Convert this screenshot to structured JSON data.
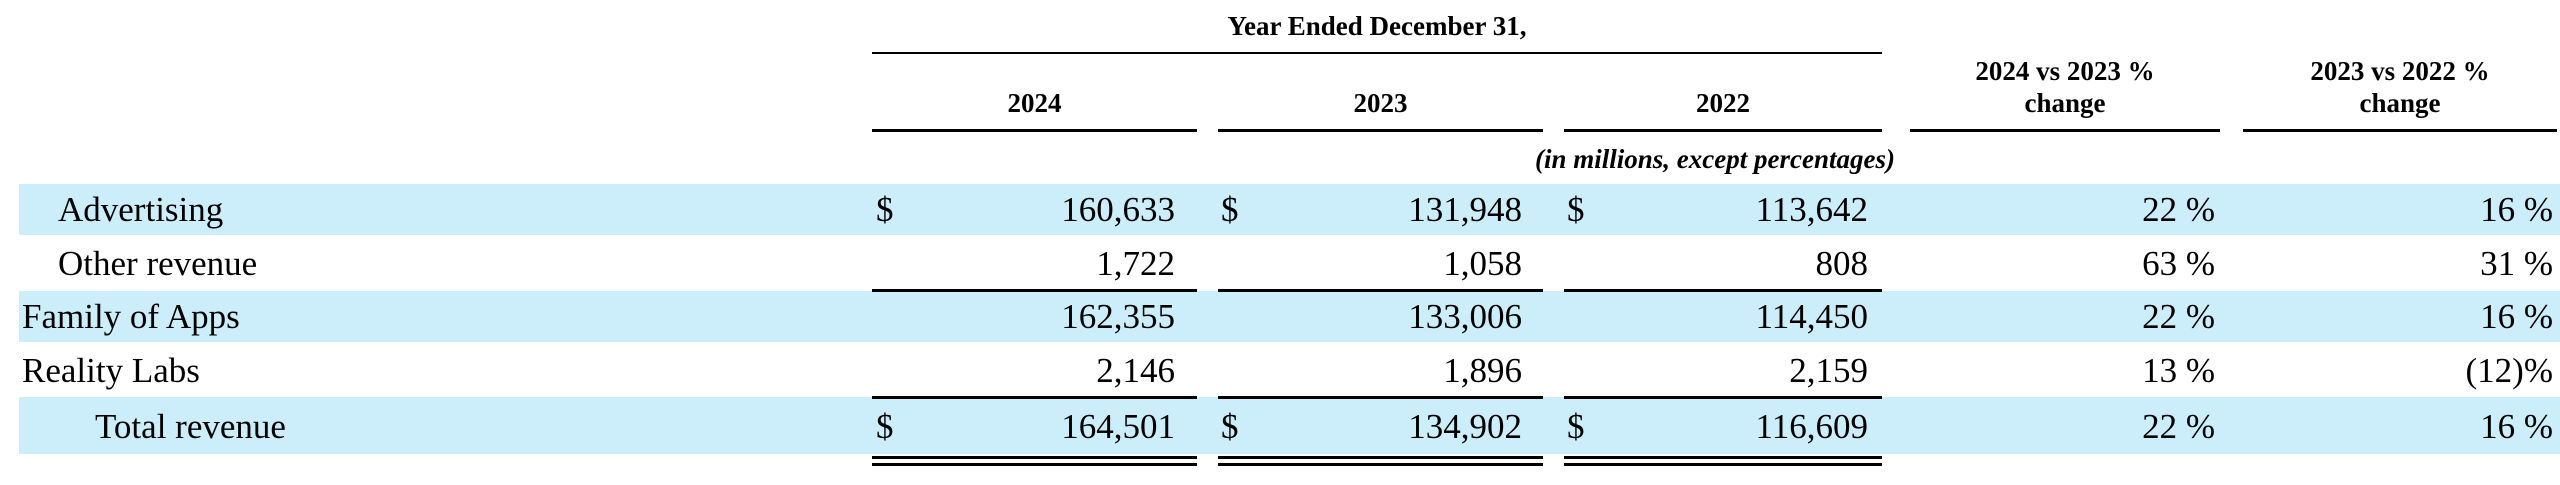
{
  "header": {
    "period": "Year Ended December 31,",
    "years": [
      "2024",
      "2023",
      "2022"
    ],
    "change1": [
      "2024 vs 2023 %",
      "change"
    ],
    "change2": [
      "2023 vs 2022 %",
      "change"
    ],
    "units": "(in millions, except percentages)"
  },
  "rows": [
    {
      "label": "Advertising",
      "currency": "$",
      "v2024": "160,633",
      "v2023": "131,948",
      "v2022": "113,642",
      "chg1": "22 %",
      "chg2": "16 %"
    },
    {
      "label": "Other revenue",
      "currency": "",
      "v2024": "1,722",
      "v2023": "1,058",
      "v2022": "808",
      "chg1": "63 %",
      "chg2": "31 %"
    },
    {
      "label": "Family of Apps",
      "currency": "",
      "v2024": "162,355",
      "v2023": "133,006",
      "v2022": "114,450",
      "chg1": "22 %",
      "chg2": "16 %"
    },
    {
      "label": "Reality Labs",
      "currency": "",
      "v2024": "2,146",
      "v2023": "1,896",
      "v2022": "2,159",
      "chg1": "13 %",
      "chg2": "(12)%"
    },
    {
      "label": "Total revenue",
      "currency": "$",
      "v2024": "164,501",
      "v2023": "134,902",
      "v2022": "116,609",
      "chg1": "22 %",
      "chg2": "16 %"
    }
  ]
}
